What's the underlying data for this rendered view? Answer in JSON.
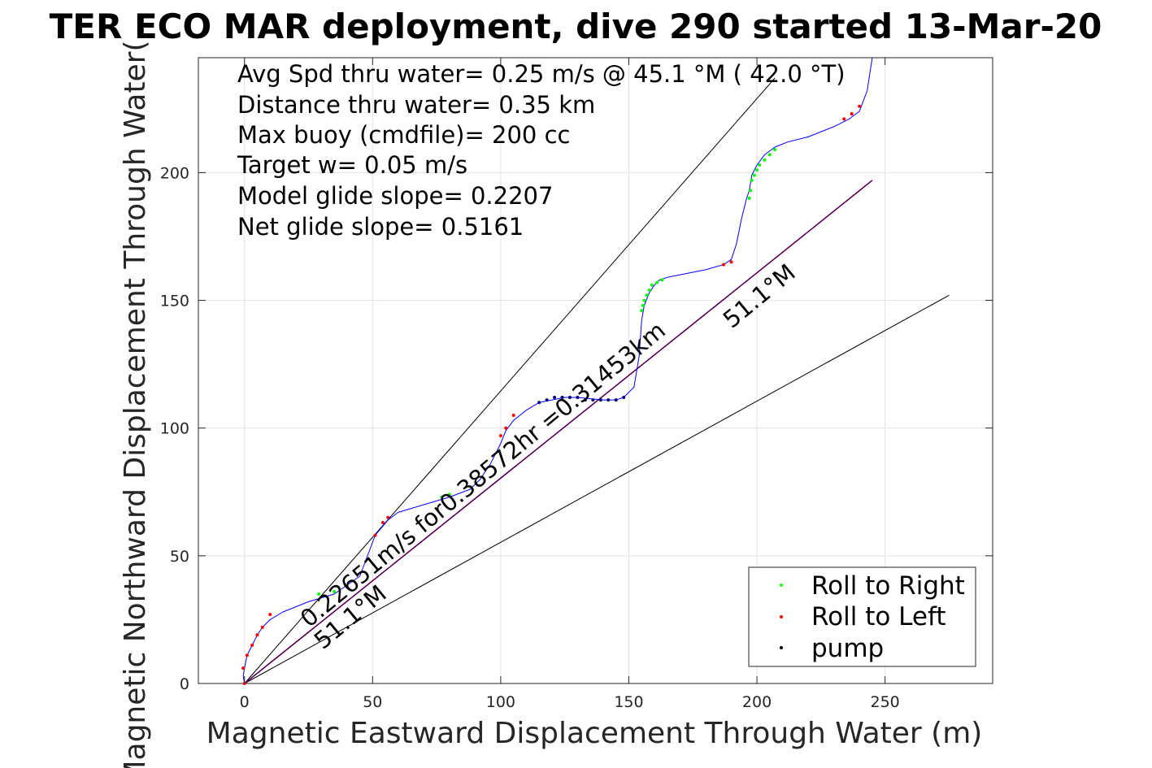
{
  "chart_data": {
    "type": "line",
    "title": "TER ECO MAR deployment, dive 290 started 13-Mar-20",
    "xlabel": "Magnetic Eastward Displacement Through Water (m)",
    "ylabel": "Magnetic Northward Displacement Through Water(",
    "xlim": [
      -18,
      292
    ],
    "ylim": [
      0,
      245
    ],
    "x_ticks": [
      0,
      50,
      100,
      150,
      200,
      250
    ],
    "y_ticks": [
      0,
      50,
      100,
      150,
      200
    ],
    "x_tick_labels": [
      "0",
      "50",
      "100",
      "150",
      "200",
      "250"
    ],
    "y_tick_labels": [
      "0",
      "50",
      "100",
      "150",
      "200"
    ],
    "grid": true,
    "annotations_text": [
      "Avg Spd thru water=  0.25 m/s @  45.1 °M ( 42.0 °T)",
      "Distance thru water=  0.35 km",
      "Max buoy (cmdfile)= 200 cc",
      "Target w= 0.05 m/s",
      "Model glide slope= 0.2207",
      "Net glide slope= 0.5161"
    ],
    "rotated_labels": {
      "track": "0.22651m/s for0.38572hr =0.31453km",
      "heading_mid": "51.1°M",
      "heading_low": "51.1°M"
    },
    "legend": {
      "placement": "bottom-right",
      "entries": [
        {
          "label": "Roll to Right",
          "color": "#00ff00"
        },
        {
          "label": "Roll to Left",
          "color": "#ff0000"
        },
        {
          "label": "pump",
          "color": "#000000"
        }
      ]
    },
    "series": [
      {
        "role": "track",
        "color": "#0000ff",
        "x": [
          0,
          -0.5,
          0,
          1,
          3,
          5,
          7,
          10,
          15,
          25,
          35,
          45,
          51,
          56,
          60,
          70,
          80,
          88,
          92,
          96,
          100,
          102,
          105,
          110,
          115,
          120,
          125,
          130,
          135,
          140,
          145,
          148,
          152,
          154,
          155,
          156,
          158,
          160,
          162,
          165,
          170,
          180,
          187,
          190,
          192,
          194,
          196,
          197,
          198,
          200,
          203,
          207,
          212,
          220,
          230,
          236,
          240,
          243,
          245
        ],
        "y": [
          0,
          3,
          6,
          11,
          15,
          19,
          22,
          25,
          28,
          32,
          35,
          42,
          58,
          64,
          67,
          70,
          73,
          76,
          80,
          86,
          94,
          99,
          103,
          107,
          110,
          111,
          112,
          112,
          111.5,
          111,
          111,
          112,
          116,
          128,
          142,
          148,
          153,
          156,
          158,
          159,
          160,
          162,
          164,
          166,
          172,
          182,
          190,
          193,
          199,
          203,
          207,
          210,
          212,
          214,
          218,
          221,
          224,
          232,
          245
        ]
      },
      {
        "role": "dots-left",
        "color": "#ff0000",
        "x": [
          0,
          -0.5,
          1,
          3,
          5,
          7,
          10,
          51,
          54,
          56,
          100,
          102,
          105,
          187,
          190,
          234,
          237,
          240
        ],
        "y": [
          0,
          6,
          11,
          15,
          19,
          22,
          27,
          58,
          63,
          65,
          97,
          100,
          105,
          164,
          165,
          221,
          223,
          226
        ]
      },
      {
        "role": "dots-right",
        "color": "#00ff00",
        "x": [
          29,
          35,
          77,
          80,
          155,
          155.5,
          156,
          157,
          158,
          159,
          161,
          163,
          197,
          197.5,
          198,
          199,
          200,
          201,
          203,
          205,
          207
        ],
        "y": [
          35,
          36,
          73,
          74,
          146,
          148,
          150,
          152,
          154,
          156,
          157,
          158,
          190,
          193,
          197,
          199,
          201,
          203,
          205,
          207,
          209
        ]
      },
      {
        "role": "dots-pump",
        "color": "#000080",
        "x": [
          115,
          118,
          121,
          124,
          127,
          130,
          133,
          136,
          139,
          142,
          145,
          148
        ],
        "y": [
          110,
          111,
          112,
          112,
          112,
          112,
          111,
          111,
          111,
          111,
          111,
          112
        ]
      },
      {
        "role": "line-upper",
        "color": "#000000",
        "x": [
          0,
          207
        ],
        "y": [
          0,
          237
        ]
      },
      {
        "role": "line-net",
        "color": "#ff00ff",
        "x": [
          0,
          245
        ],
        "y": [
          0,
          197
        ]
      },
      {
        "role": "line-track",
        "color": "#000000",
        "x": [
          0,
          245
        ],
        "y": [
          0,
          197
        ]
      },
      {
        "role": "line-lower",
        "color": "#000000",
        "x": [
          0,
          275
        ],
        "y": [
          0,
          152
        ]
      }
    ]
  }
}
